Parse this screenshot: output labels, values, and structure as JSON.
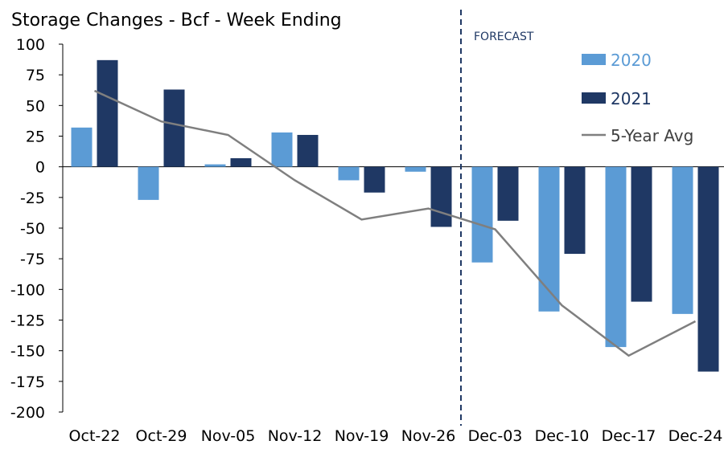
{
  "chart_data": {
    "type": "bar",
    "title": "Storage Changes - Bcf - Week Ending",
    "xlabel": "",
    "ylabel": "",
    "categories": [
      "Oct-22",
      "Oct-29",
      "Nov-05",
      "Nov-12",
      "Nov-19",
      "Nov-26",
      "Dec-03",
      "Dec-10",
      "Dec-17",
      "Dec-24"
    ],
    "ylim": [
      -200,
      100
    ],
    "yticks": [
      100,
      75,
      50,
      25,
      0,
      -25,
      -50,
      -75,
      -100,
      -125,
      -150,
      -175,
      -200
    ],
    "series": [
      {
        "name": "2020",
        "kind": "bar",
        "color": "#5b9bd5",
        "values": [
          32,
          -27,
          2,
          28,
          -11,
          -4,
          -78,
          -118,
          -147,
          -120
        ]
      },
      {
        "name": "2021",
        "kind": "bar",
        "color": "#1f3864",
        "values": [
          87,
          63,
          7,
          26,
          -21,
          -49,
          -44,
          -71,
          -110,
          -167
        ]
      },
      {
        "name": "5-Year Avg",
        "kind": "line",
        "color": "#7f7f7f",
        "values": [
          62,
          37,
          26,
          -11,
          -43,
          -34,
          -51,
          -113,
          -154,
          -126
        ]
      }
    ],
    "annotation": "FORECAST",
    "forecast_after_category": "Nov-26",
    "legend_position": "top-right",
    "grid": false
  }
}
